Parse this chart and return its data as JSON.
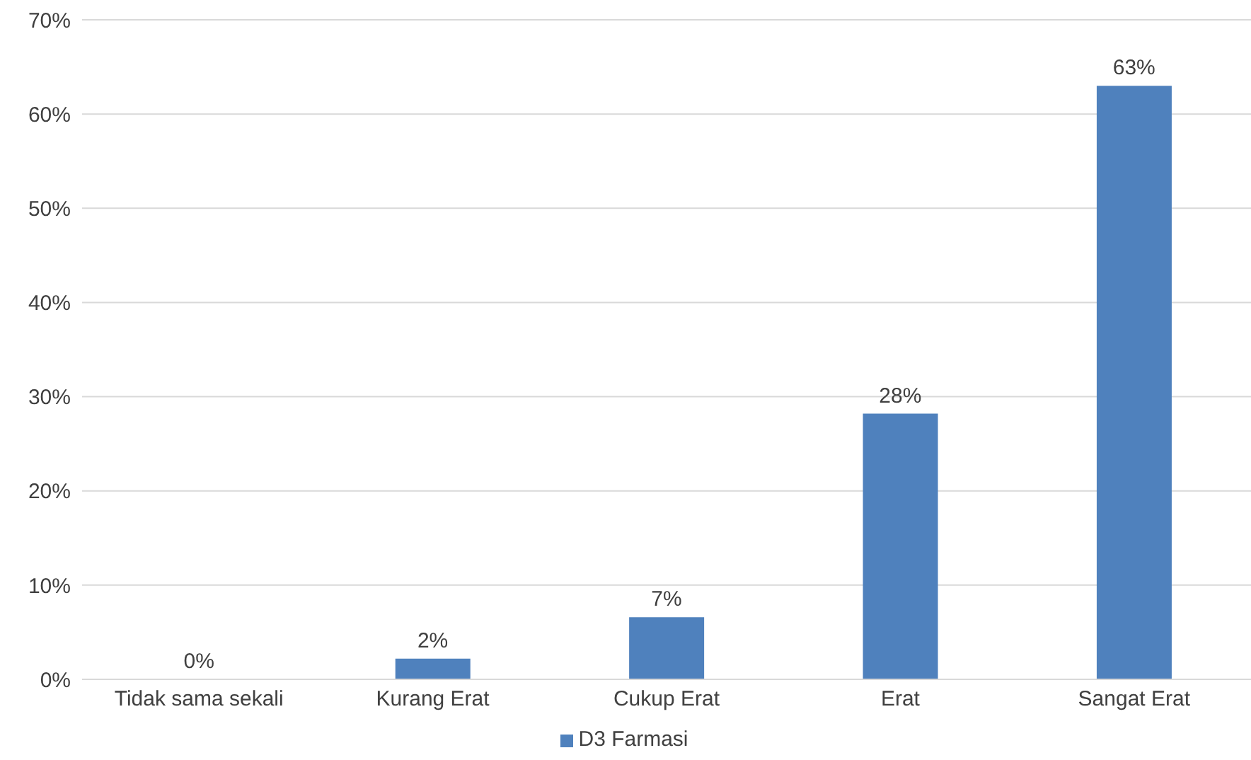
{
  "chart_data": {
    "type": "bar",
    "categories": [
      "Tidak sama sekali",
      "Kurang Erat",
      "Cukup Erat",
      "Erat",
      "Sangat Erat"
    ],
    "series": [
      {
        "name": "D3 Farmasi",
        "color": "#4f81bd",
        "values": [
          0,
          2.2,
          6.6,
          28.2,
          63
        ],
        "value_labels": [
          "0%",
          "2%",
          "7%",
          "28%",
          "63%"
        ]
      }
    ],
    "ylim": [
      0,
      70
    ],
    "yticks": [
      {
        "value": 0,
        "label": "0%"
      },
      {
        "value": 10,
        "label": "10%"
      },
      {
        "value": 20,
        "label": "20%"
      },
      {
        "value": 30,
        "label": "30%"
      },
      {
        "value": 40,
        "label": "40%"
      },
      {
        "value": 50,
        "label": "50%"
      },
      {
        "value": 60,
        "label": "60%"
      },
      {
        "value": 70,
        "label": "70%"
      }
    ],
    "grid": "y",
    "legend": "bottom"
  }
}
